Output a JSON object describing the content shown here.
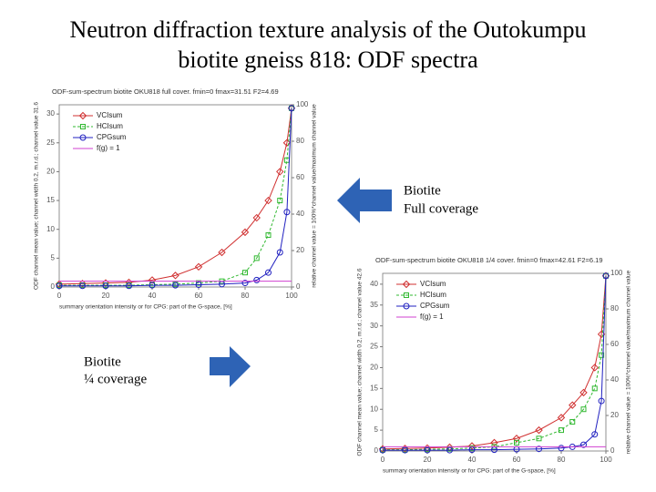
{
  "title": [
    "Neutron diffraction texture analysis of the Outokumpu",
    "biotite gneiss 818: ODF spectra"
  ],
  "annotations": [
    [
      "Biotite",
      "Full coverage"
    ],
    [
      "Biotite",
      "¼ coverage"
    ]
  ],
  "chart_data": [
    {
      "type": "line",
      "title": "ODF-sum-spectrum biotite OKU818 full cover. fmin=0 fmax=31.51 F2=4.69",
      "x_label": "summary orientation intensity or for CPG: part of the G-space, [%]",
      "y_label": "ODF channel mean value; channel width 0.2, m.r.d.; channel value 31.6",
      "y2_label": "relative channel value = 100%*channel value/maximum channel value",
      "x": [
        0,
        10,
        20,
        30,
        40,
        50,
        60,
        70,
        80,
        85,
        90,
        95,
        98,
        100
      ],
      "xlim": [
        0,
        100
      ],
      "xticks": [
        0,
        20,
        40,
        60,
        80,
        100
      ],
      "ylim": [
        0,
        31.6
      ],
      "yticks": [
        0,
        5,
        10,
        15,
        20,
        25,
        30
      ],
      "y2lim": [
        0,
        100
      ],
      "y2ticks": [
        0,
        20,
        40,
        60,
        80,
        100
      ],
      "series": [
        {
          "name": "VCIsum",
          "color": "#d03030",
          "marker": "diamond",
          "values": [
            0.5,
            0.6,
            0.7,
            0.8,
            1.2,
            2,
            3.5,
            6,
            9.5,
            12,
            15,
            20,
            25,
            31
          ]
        },
        {
          "name": "HCIsum",
          "color": "#30b830",
          "marker": "square",
          "values": [
            0.3,
            0.3,
            0.3,
            0.3,
            0.4,
            0.5,
            0.7,
            1,
            2.5,
            5,
            9,
            15,
            22,
            31
          ]
        },
        {
          "name": "CPGsum",
          "color": "#2020c0",
          "marker": "circle",
          "values": [
            0.2,
            0.2,
            0.2,
            0.2,
            0.3,
            0.3,
            0.4,
            0.5,
            0.7,
            1.2,
            2.5,
            6,
            13,
            31
          ]
        },
        {
          "name": "f(g) = 1",
          "color": "#d040d0",
          "marker": "none",
          "values": [
            1,
            1,
            1,
            1,
            1,
            1,
            1,
            1,
            1,
            1,
            1,
            1,
            1,
            1
          ]
        }
      ]
    },
    {
      "type": "line",
      "title": "ODF-sum-spectrum biotite OKU818 1/4 cover. fmin=0 fmax=42.61 F2=6.19",
      "x_label": "summary orientation intensity or for CPG: part of the G-space, [%]",
      "y_label": "ODF channel mean value; channel width 0.2, m.r.d.; channel value 42.6",
      "y2_label": "relative channel value = 100%*channel value/maximum channel value",
      "x": [
        0,
        10,
        20,
        30,
        40,
        50,
        60,
        70,
        80,
        85,
        90,
        95,
        98,
        100
      ],
      "xlim": [
        0,
        100
      ],
      "xticks": [
        0,
        20,
        40,
        60,
        80,
        100
      ],
      "ylim": [
        0,
        42.6
      ],
      "yticks": [
        0,
        5,
        10,
        15,
        20,
        25,
        30,
        35,
        40
      ],
      "y2lim": [
        0,
        100
      ],
      "y2ticks": [
        0,
        20,
        40,
        60,
        80,
        100
      ],
      "series": [
        {
          "name": "VCIsum",
          "color": "#d03030",
          "marker": "diamond",
          "values": [
            0.5,
            0.6,
            0.7,
            0.9,
            1.2,
            2,
            3,
            5,
            8,
            11,
            14,
            20,
            28,
            42
          ]
        },
        {
          "name": "HCIsum",
          "color": "#30b830",
          "marker": "square",
          "values": [
            0.3,
            0.3,
            0.4,
            0.5,
            0.7,
            1,
            2,
            3,
            5,
            7,
            10,
            15,
            23,
            42
          ]
        },
        {
          "name": "CPGsum",
          "color": "#2020c0",
          "marker": "circle",
          "values": [
            0.2,
            0.2,
            0.2,
            0.2,
            0.3,
            0.3,
            0.4,
            0.5,
            0.7,
            1,
            1.5,
            4,
            12,
            42
          ]
        },
        {
          "name": "f(g) = 1",
          "color": "#d040d0",
          "marker": "none",
          "values": [
            1,
            1,
            1,
            1,
            1,
            1,
            1,
            1,
            1,
            1,
            1,
            1,
            1,
            1
          ]
        }
      ]
    }
  ]
}
